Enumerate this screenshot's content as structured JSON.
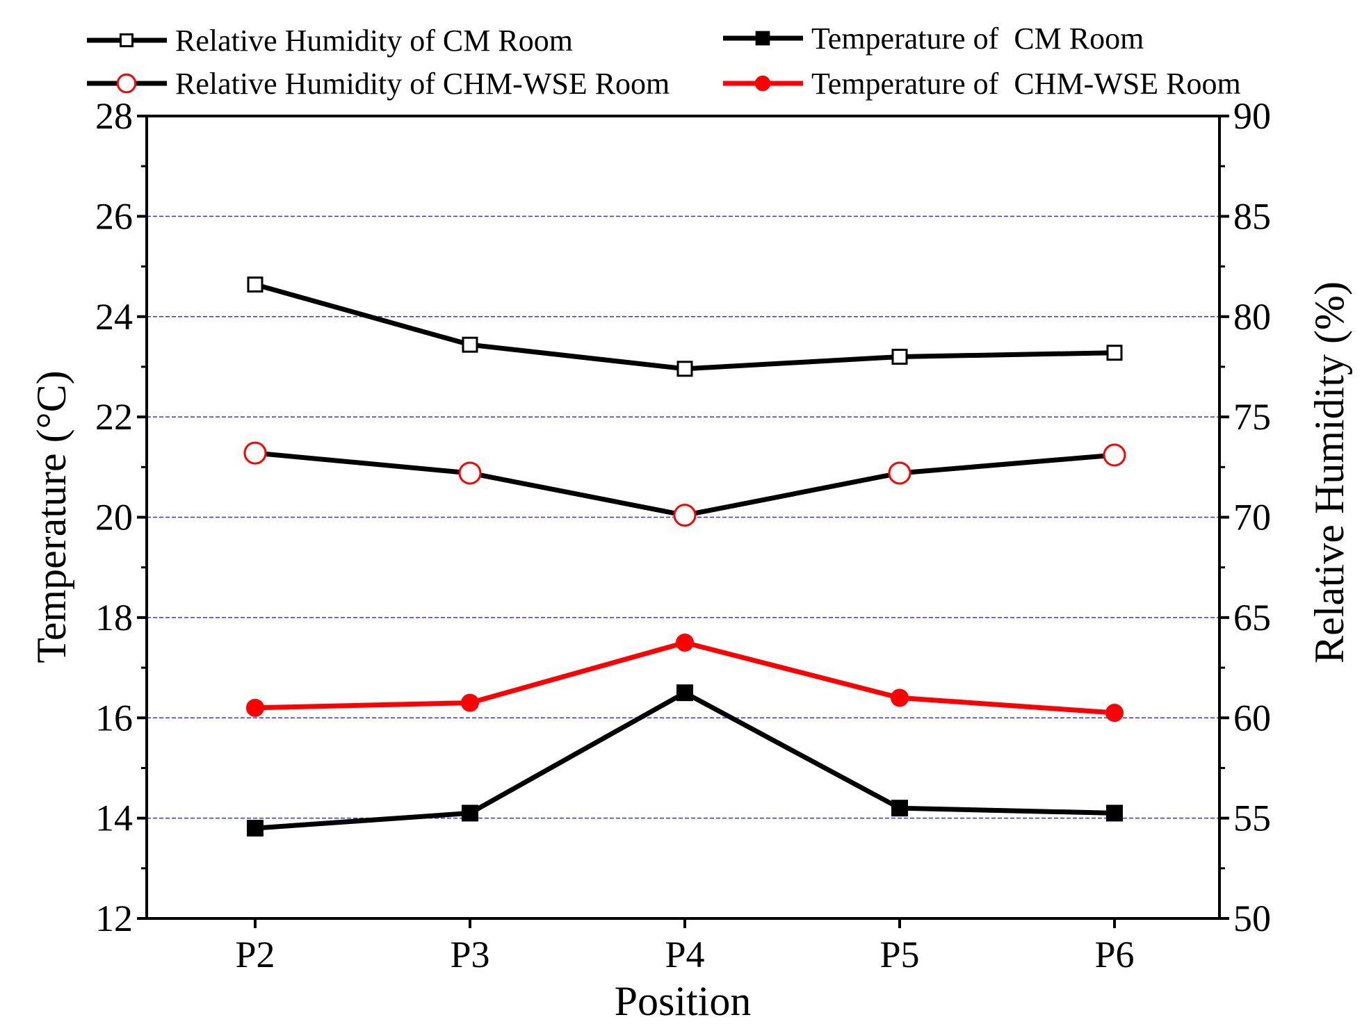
{
  "chart_data": {
    "type": "line",
    "title": "",
    "xlabel": "Position",
    "ylabel_left": "Temperature (°C)",
    "ylabel_right": "Relative Humidity (%)",
    "categories": [
      "P2",
      "P3",
      "P4",
      "P5",
      "P6"
    ],
    "ylim_left": [
      12,
      28
    ],
    "yticks_left": [
      "12",
      "14",
      "16",
      "18",
      "20",
      "22",
      "24",
      "26",
      "28"
    ],
    "ylim_right": [
      50,
      90
    ],
    "yticks_right": [
      "50",
      "55",
      "60",
      "65",
      "70",
      "75",
      "80",
      "85",
      "90"
    ],
    "grid": "horizontal dashed (blue) at major left ticks",
    "legend_position": "top",
    "series": [
      {
        "name": "Relative Humidity of CM Room",
        "axis": "right",
        "values": [
          81.6,
          78.6,
          77.4,
          78.0,
          78.2
        ],
        "line_color": "#000000",
        "marker": "square-open",
        "marker_color": "#000000"
      },
      {
        "name": "Temperature of  CM Room",
        "axis": "left",
        "values": [
          13.8,
          14.1,
          16.5,
          14.2,
          14.1
        ],
        "line_color": "#000000",
        "marker": "square-filled",
        "marker_color": "#000000"
      },
      {
        "name": "Relative Humidity of CHM-WSE Room",
        "axis": "right",
        "values": [
          73.2,
          72.2,
          70.1,
          72.2,
          73.1
        ],
        "line_color": "#000000",
        "marker": "circle-open",
        "marker_color": "#ff0000"
      },
      {
        "name": "Temperature of  CHM-WSE Room",
        "axis": "left",
        "values": [
          16.2,
          16.3,
          17.5,
          16.4,
          16.1
        ],
        "line_color": "#ff0000",
        "marker": "circle-filled",
        "marker_color": "#ff0000"
      }
    ]
  }
}
